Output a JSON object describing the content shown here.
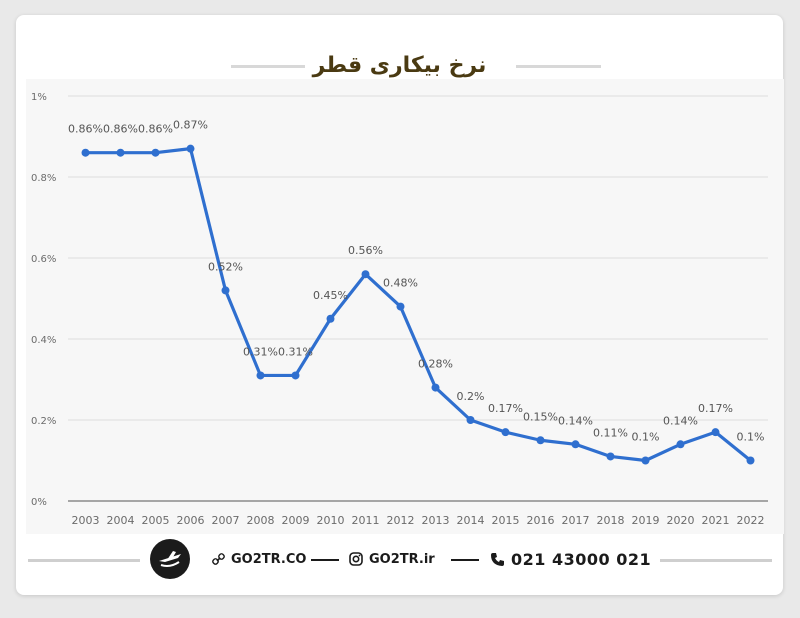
{
  "header": {
    "title": "نرخ بیکاری قطر"
  },
  "footer": {
    "website": "GO2TR.CO",
    "instagram": "GO2TR.ir",
    "phone": "021 43000 021"
  },
  "colors": {
    "line": "#2f6fcf",
    "title": "#4a3a12",
    "grid": "#dddddd",
    "axis_text": "#6b6b6b"
  },
  "chart_data": {
    "type": "line",
    "title": "نرخ بیکاری قطر",
    "xlabel": "",
    "ylabel": "",
    "x": [
      "2003",
      "2004",
      "2005",
      "2006",
      "2007",
      "2008",
      "2009",
      "2010",
      "2011",
      "2012",
      "2013",
      "2014",
      "2015",
      "2016",
      "2017",
      "2018",
      "2019",
      "2020",
      "2021",
      "2022"
    ],
    "series": [
      {
        "values": [
          0.86,
          0.86,
          0.86,
          0.87,
          0.52,
          0.31,
          0.31,
          0.45,
          0.56,
          0.48,
          0.28,
          0.2,
          0.17,
          0.15,
          0.14,
          0.11,
          0.1,
          0.14,
          0.17,
          0.1
        ]
      }
    ],
    "data_labels": [
      "0.86%",
      "0.86%",
      "0.86%",
      "0.87%",
      "0.52%",
      "0.31%",
      "0.31%",
      "0.45%",
      "0.56%",
      "0.48%",
      "0.28%",
      "0.2%",
      "0.17%",
      "0.15%",
      "0.14%",
      "0.11%",
      "0.1%",
      "0.14%",
      "0.17%",
      "0.1%"
    ],
    "ylim": [
      0,
      1
    ],
    "yticks": [
      0,
      0.2,
      0.4,
      0.6,
      0.8,
      1
    ],
    "ytick_labels": [
      "0%",
      "0.2%",
      "0.4%",
      "0.6%",
      "0.8%",
      "1%"
    ],
    "grid": true,
    "legend": "none"
  }
}
